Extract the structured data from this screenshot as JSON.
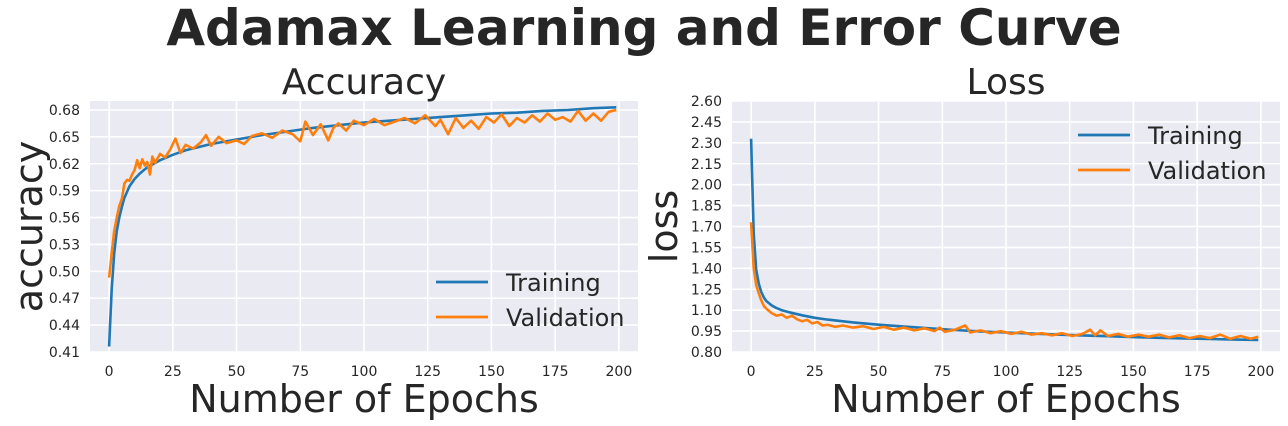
{
  "figure": {
    "suptitle": "Adamax Learning and Error Curve"
  },
  "colors": {
    "training": "#1f77b4",
    "validation": "#ff7f0e",
    "background": "#eaeaf2",
    "grid": "#ffffff"
  },
  "chart_data": [
    {
      "type": "line",
      "title": "Accuracy",
      "xlabel": "Number of Epochs",
      "ylabel": "accuracy",
      "xlim": [
        -7.5,
        207.5
      ],
      "ylim": [
        0.41,
        0.69
      ],
      "xticks": [
        0,
        25,
        50,
        75,
        100,
        125,
        150,
        175,
        200
      ],
      "yticks": [
        0.41,
        0.44,
        0.47,
        0.5,
        0.53,
        0.56,
        0.59,
        0.62,
        0.65,
        0.68
      ],
      "ytick_labels": [
        "0.41",
        "0.44",
        "0.47",
        "0.50",
        "0.53",
        "0.56",
        "0.59",
        "0.62",
        "0.65",
        "0.68"
      ],
      "grid": true,
      "legend_position": "lower-right",
      "series": [
        {
          "name": "Training",
          "color": "#1f77b4",
          "points": [
            [
              0,
              0.416
            ],
            [
              1,
              0.48
            ],
            [
              2,
              0.52
            ],
            [
              3,
              0.545
            ],
            [
              4,
              0.56
            ],
            [
              5,
              0.572
            ],
            [
              6,
              0.582
            ],
            [
              8,
              0.595
            ],
            [
              10,
              0.603
            ],
            [
              12,
              0.609
            ],
            [
              15,
              0.616
            ],
            [
              20,
              0.624
            ],
            [
              25,
              0.63
            ],
            [
              30,
              0.635
            ],
            [
              40,
              0.642
            ],
            [
              50,
              0.647
            ],
            [
              60,
              0.652
            ],
            [
              70,
              0.656
            ],
            [
              80,
              0.66
            ],
            [
              90,
              0.663
            ],
            [
              100,
              0.666
            ],
            [
              110,
              0.668
            ],
            [
              120,
              0.67
            ],
            [
              130,
              0.672
            ],
            [
              140,
              0.674
            ],
            [
              150,
              0.676
            ],
            [
              160,
              0.677
            ],
            [
              170,
              0.679
            ],
            [
              180,
              0.68
            ],
            [
              190,
              0.682
            ],
            [
              199,
              0.683
            ]
          ]
        },
        {
          "name": "Validation",
          "color": "#ff7f0e",
          "points": [
            [
              0,
              0.493
            ],
            [
              1,
              0.52
            ],
            [
              2,
              0.545
            ],
            [
              3,
              0.56
            ],
            [
              4,
              0.573
            ],
            [
              5,
              0.581
            ],
            [
              6,
              0.598
            ],
            [
              7,
              0.602
            ],
            [
              8,
              0.601
            ],
            [
              9,
              0.608
            ],
            [
              10,
              0.613
            ],
            [
              11,
              0.624
            ],
            [
              12,
              0.615
            ],
            [
              13,
              0.625
            ],
            [
              14,
              0.618
            ],
            [
              15,
              0.622
            ],
            [
              16,
              0.608
            ],
            [
              17,
              0.628
            ],
            [
              18,
              0.621
            ],
            [
              20,
              0.631
            ],
            [
              22,
              0.627
            ],
            [
              24,
              0.636
            ],
            [
              26,
              0.648
            ],
            [
              28,
              0.632
            ],
            [
              30,
              0.641
            ],
            [
              33,
              0.637
            ],
            [
              36,
              0.644
            ],
            [
              38,
              0.652
            ],
            [
              40,
              0.64
            ],
            [
              43,
              0.65
            ],
            [
              46,
              0.643
            ],
            [
              50,
              0.646
            ],
            [
              53,
              0.642
            ],
            [
              56,
              0.651
            ],
            [
              60,
              0.654
            ],
            [
              64,
              0.649
            ],
            [
              68,
              0.657
            ],
            [
              72,
              0.653
            ],
            [
              75,
              0.645
            ],
            [
              77,
              0.667
            ],
            [
              80,
              0.652
            ],
            [
              83,
              0.664
            ],
            [
              86,
              0.646
            ],
            [
              88,
              0.66
            ],
            [
              90,
              0.665
            ],
            [
              93,
              0.657
            ],
            [
              96,
              0.668
            ],
            [
              100,
              0.663
            ],
            [
              104,
              0.67
            ],
            [
              108,
              0.663
            ],
            [
              112,
              0.667
            ],
            [
              116,
              0.671
            ],
            [
              120,
              0.665
            ],
            [
              124,
              0.674
            ],
            [
              128,
              0.662
            ],
            [
              130,
              0.669
            ],
            [
              133,
              0.653
            ],
            [
              136,
              0.671
            ],
            [
              139,
              0.66
            ],
            [
              142,
              0.668
            ],
            [
              145,
              0.659
            ],
            [
              148,
              0.672
            ],
            [
              151,
              0.666
            ],
            [
              154,
              0.675
            ],
            [
              157,
              0.662
            ],
            [
              160,
              0.671
            ],
            [
              163,
              0.666
            ],
            [
              166,
              0.674
            ],
            [
              169,
              0.667
            ],
            [
              172,
              0.676
            ],
            [
              175,
              0.669
            ],
            [
              178,
              0.672
            ],
            [
              181,
              0.667
            ],
            [
              184,
              0.679
            ],
            [
              187,
              0.668
            ],
            [
              190,
              0.676
            ],
            [
              193,
              0.668
            ],
            [
              196,
              0.678
            ],
            [
              199,
              0.68
            ]
          ]
        }
      ]
    },
    {
      "type": "line",
      "title": "Loss",
      "xlabel": "Number of Epochs",
      "ylabel": "loss",
      "xlim": [
        -7.5,
        207.5
      ],
      "ylim": [
        0.8,
        2.6
      ],
      "xticks": [
        0,
        25,
        50,
        75,
        100,
        125,
        150,
        175,
        200
      ],
      "yticks": [
        0.8,
        0.95,
        1.1,
        1.25,
        1.4,
        1.55,
        1.7,
        1.85,
        2.0,
        2.15,
        2.3,
        2.45,
        2.6
      ],
      "ytick_labels": [
        "0.80",
        "0.95",
        "1.10",
        "1.25",
        "1.40",
        "1.55",
        "1.70",
        "1.85",
        "2.00",
        "2.15",
        "2.30",
        "2.45",
        "2.60"
      ],
      "grid": true,
      "legend_position": "upper-right",
      "series": [
        {
          "name": "Training",
          "color": "#1f77b4",
          "points": [
            [
              0,
              2.33
            ],
            [
              1,
              1.65
            ],
            [
              2,
              1.39
            ],
            [
              3,
              1.29
            ],
            [
              4,
              1.23
            ],
            [
              5,
              1.19
            ],
            [
              6,
              1.165
            ],
            [
              8,
              1.135
            ],
            [
              10,
              1.115
            ],
            [
              12,
              1.1
            ],
            [
              15,
              1.085
            ],
            [
              20,
              1.063
            ],
            [
              25,
              1.045
            ],
            [
              30,
              1.032
            ],
            [
              40,
              1.012
            ],
            [
              50,
              0.996
            ],
            [
              60,
              0.982
            ],
            [
              70,
              0.97
            ],
            [
              80,
              0.958
            ],
            [
              90,
              0.948
            ],
            [
              100,
              0.94
            ],
            [
              110,
              0.932
            ],
            [
              120,
              0.925
            ],
            [
              130,
              0.919
            ],
            [
              140,
              0.913
            ],
            [
              150,
              0.907
            ],
            [
              160,
              0.902
            ],
            [
              170,
              0.897
            ],
            [
              180,
              0.893
            ],
            [
              190,
              0.889
            ],
            [
              199,
              0.886
            ]
          ]
        },
        {
          "name": "Validation",
          "color": "#ff7f0e",
          "points": [
            [
              0,
              1.73
            ],
            [
              1,
              1.4
            ],
            [
              2,
              1.28
            ],
            [
              3,
              1.22
            ],
            [
              4,
              1.17
            ],
            [
              5,
              1.13
            ],
            [
              6,
              1.11
            ],
            [
              8,
              1.08
            ],
            [
              10,
              1.06
            ],
            [
              12,
              1.07
            ],
            [
              14,
              1.045
            ],
            [
              16,
              1.06
            ],
            [
              18,
              1.035
            ],
            [
              20,
              1.02
            ],
            [
              22,
              1.03
            ],
            [
              24,
              1.005
            ],
            [
              26,
              1.015
            ],
            [
              28,
              0.99
            ],
            [
              30,
              0.995
            ],
            [
              33,
              0.98
            ],
            [
              36,
              0.99
            ],
            [
              40,
              0.975
            ],
            [
              44,
              0.985
            ],
            [
              48,
              0.965
            ],
            [
              52,
              0.98
            ],
            [
              56,
              0.96
            ],
            [
              60,
              0.975
            ],
            [
              64,
              0.955
            ],
            [
              68,
              0.97
            ],
            [
              72,
              0.95
            ],
            [
              74,
              0.975
            ],
            [
              76,
              0.945
            ],
            [
              80,
              0.96
            ],
            [
              84,
              0.99
            ],
            [
              86,
              0.94
            ],
            [
              90,
              0.955
            ],
            [
              94,
              0.935
            ],
            [
              98,
              0.95
            ],
            [
              102,
              0.93
            ],
            [
              106,
              0.945
            ],
            [
              110,
              0.925
            ],
            [
              114,
              0.935
            ],
            [
              118,
              0.92
            ],
            [
              122,
              0.935
            ],
            [
              126,
              0.915
            ],
            [
              130,
              0.93
            ],
            [
              133,
              0.96
            ],
            [
              135,
              0.92
            ],
            [
              137,
              0.955
            ],
            [
              140,
              0.915
            ],
            [
              144,
              0.93
            ],
            [
              148,
              0.91
            ],
            [
              152,
              0.925
            ],
            [
              156,
              0.91
            ],
            [
              160,
              0.925
            ],
            [
              164,
              0.905
            ],
            [
              168,
              0.92
            ],
            [
              172,
              0.9
            ],
            [
              176,
              0.915
            ],
            [
              180,
              0.9
            ],
            [
              184,
              0.925
            ],
            [
              188,
              0.895
            ],
            [
              192,
              0.915
            ],
            [
              196,
              0.895
            ],
            [
              199,
              0.91
            ]
          ]
        }
      ]
    }
  ]
}
